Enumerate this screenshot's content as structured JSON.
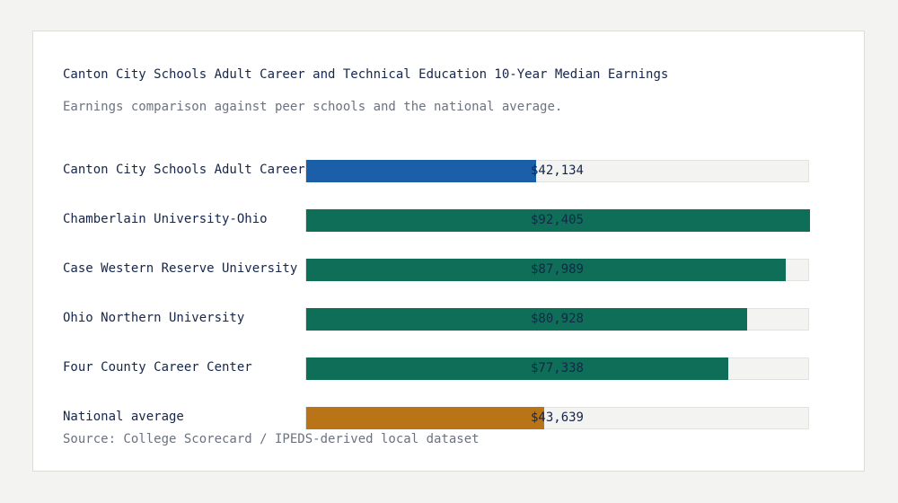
{
  "chart_data": {
    "type": "bar",
    "orientation": "horizontal",
    "title": "Canton City Schools Adult Career and Technical Education 10-Year Median Earnings",
    "subtitle": "Earnings comparison against peer schools and the national average.",
    "source": "Source: College Scorecard / IPEDS-derived local dataset",
    "xlim": [
      0,
      92405
    ],
    "categories": [
      "Canton City Schools Adult Career and Technical Education",
      "Chamberlain University-Ohio",
      "Case Western Reserve University",
      "Ohio Northern University",
      "Four County Career Center",
      "National average"
    ],
    "values": [
      42134,
      92405,
      87989,
      80928,
      77338,
      43639
    ],
    "value_labels": [
      "$42,134",
      "$92,405",
      "$87,989",
      "$80,928",
      "$77,338",
      "$43,639"
    ],
    "bar_colors": [
      "#1a5fa8",
      "#0f6e58",
      "#0f6e58",
      "#0f6e58",
      "#0f6e58",
      "#b87416"
    ],
    "track_color": "#f3f3f1"
  }
}
